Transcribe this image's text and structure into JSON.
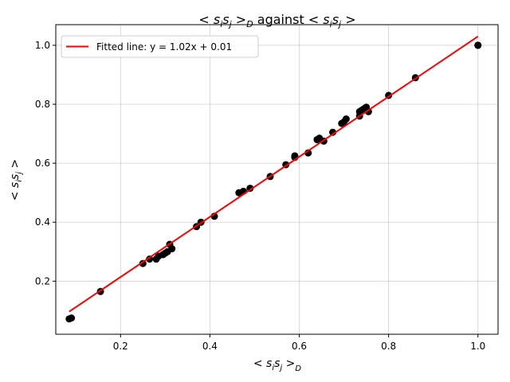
{
  "chart_data": {
    "type": "scatter",
    "title_parts": {
      "a": "< s",
      "a_sub1": "i",
      "a_mid": "s",
      "a_sub2": "j",
      "a_close": " >",
      "a_sub3": "D",
      "word": " against ",
      "b": "< s",
      "b_sub1": "i",
      "b_mid": "s",
      "b_sub2": "j",
      "b_close": " >"
    },
    "xlabel_parts": {
      "open": "< s",
      "sub1": "i",
      "mid": "s",
      "sub2": "j",
      "close": " >",
      "sub3": "D"
    },
    "ylabel_parts": {
      "open": "< s",
      "sub1": "i",
      "mid": "s",
      "sub2": "j",
      "close": " >"
    },
    "xlim": [
      0.055,
      1.045
    ],
    "ylim": [
      0.02,
      1.07
    ],
    "xticks": [
      "0.2",
      "0.4",
      "0.6",
      "0.8",
      "1.0"
    ],
    "xtick_values": [
      0.2,
      0.4,
      0.6,
      0.8,
      1.0
    ],
    "yticks": [
      "0.2",
      "0.4",
      "0.6",
      "0.8",
      "1.0"
    ],
    "ytick_values": [
      0.2,
      0.4,
      0.6,
      0.8,
      1.0
    ],
    "grid": true,
    "legend": {
      "position": "top-left",
      "label": "Fitted line: y = 1.02x + 0.01"
    },
    "fit": {
      "slope": 1.02,
      "intercept": 0.01,
      "x_range": [
        0.085,
        1.0
      ],
      "color": "#ff0000"
    },
    "point_color": "#000000",
    "points": [
      [
        0.085,
        0.072
      ],
      [
        0.09,
        0.075
      ],
      [
        0.155,
        0.165
      ],
      [
        0.25,
        0.26
      ],
      [
        0.265,
        0.275
      ],
      [
        0.28,
        0.275
      ],
      [
        0.285,
        0.285
      ],
      [
        0.295,
        0.29
      ],
      [
        0.3,
        0.295
      ],
      [
        0.305,
        0.3
      ],
      [
        0.31,
        0.325
      ],
      [
        0.315,
        0.31
      ],
      [
        0.37,
        0.385
      ],
      [
        0.38,
        0.4
      ],
      [
        0.41,
        0.42
      ],
      [
        0.465,
        0.5
      ],
      [
        0.475,
        0.505
      ],
      [
        0.49,
        0.515
      ],
      [
        0.535,
        0.555
      ],
      [
        0.57,
        0.595
      ],
      [
        0.59,
        0.62
      ],
      [
        0.59,
        0.625
      ],
      [
        0.62,
        0.635
      ],
      [
        0.64,
        0.68
      ],
      [
        0.645,
        0.685
      ],
      [
        0.655,
        0.675
      ],
      [
        0.675,
        0.705
      ],
      [
        0.695,
        0.735
      ],
      [
        0.7,
        0.74
      ],
      [
        0.705,
        0.75
      ],
      [
        0.735,
        0.76
      ],
      [
        0.735,
        0.775
      ],
      [
        0.74,
        0.78
      ],
      [
        0.745,
        0.785
      ],
      [
        0.75,
        0.79
      ],
      [
        0.755,
        0.775
      ],
      [
        0.8,
        0.83
      ],
      [
        0.86,
        0.89
      ],
      [
        1.0,
        1.0
      ],
      [
        1.0,
        1.0
      ]
    ]
  }
}
